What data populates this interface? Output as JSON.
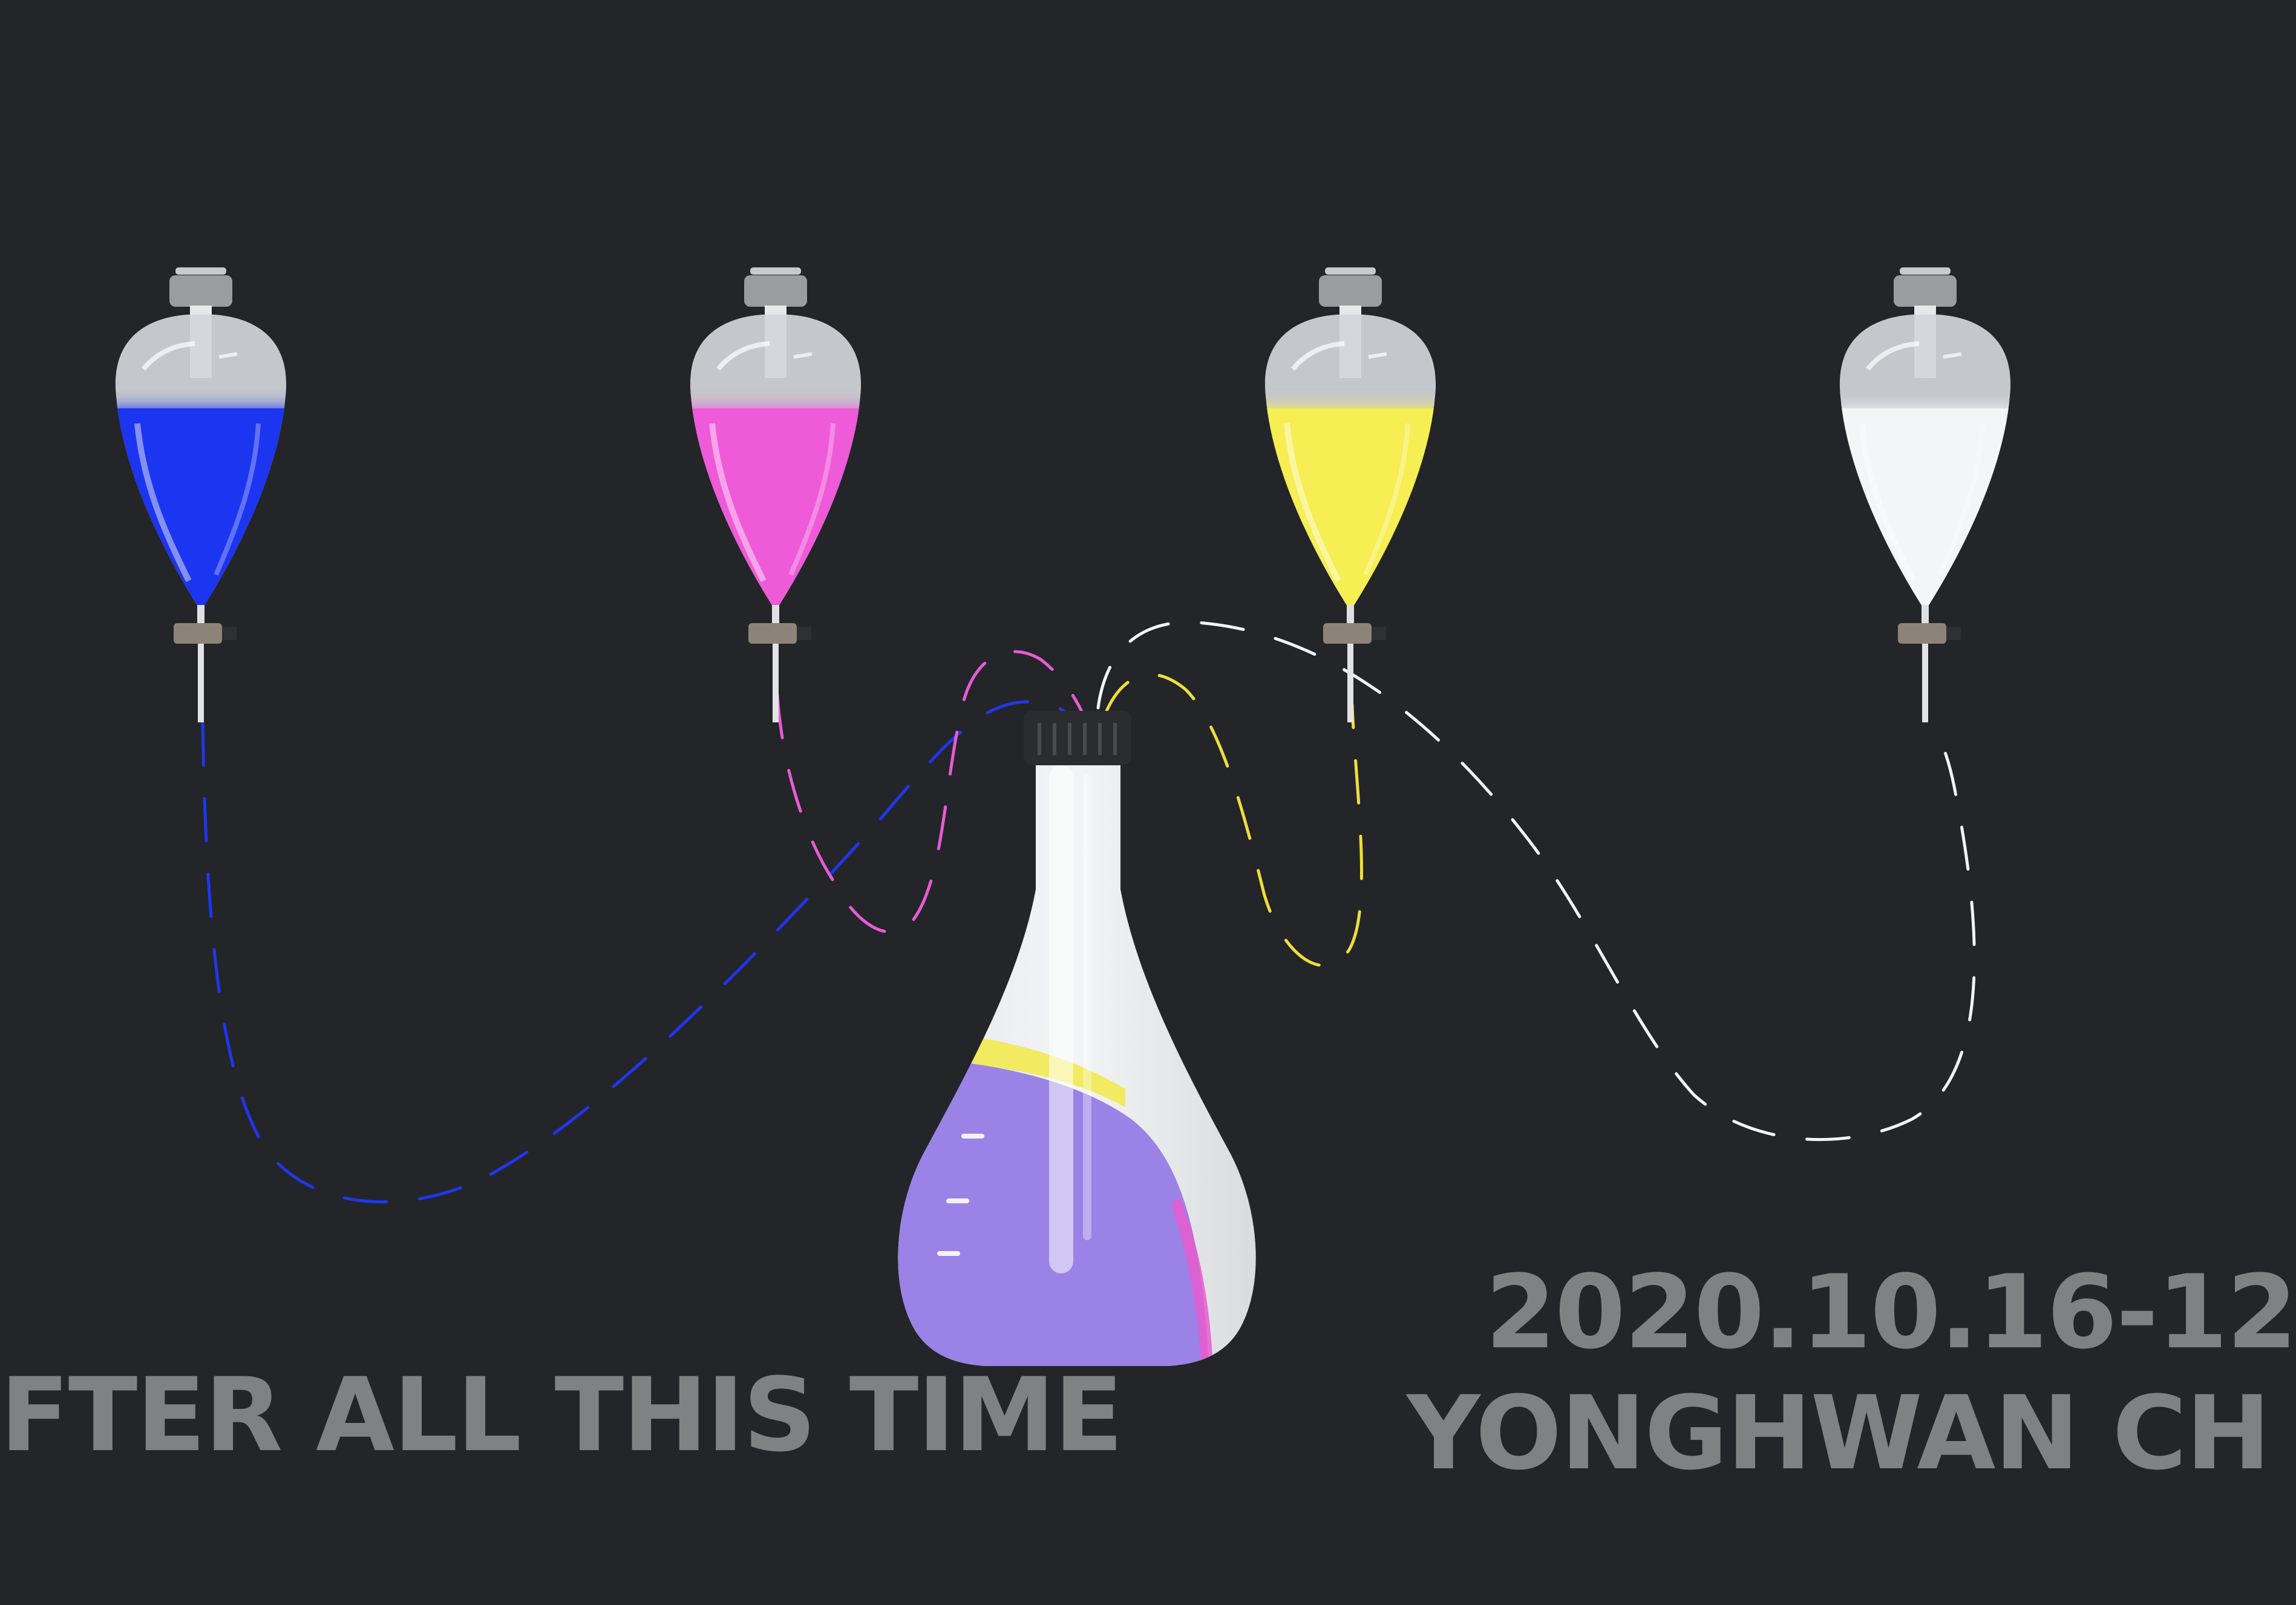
{
  "poster": {
    "title": "FTER ALL THIS TIME",
    "dates": "2020.10.16-12",
    "artist": "YONGHWAN CH"
  },
  "funnels": [
    {
      "name": "blue",
      "color": "#1f35f0",
      "fill_level": 0.65
    },
    {
      "name": "pink",
      "color": "#ee5ad8",
      "fill_level": 0.65
    },
    {
      "name": "yellow",
      "color": "#f6ee52",
      "fill_level": 0.65
    },
    {
      "name": "white",
      "color": "#f4f5f7",
      "fill_level": 0.65
    }
  ],
  "flask": {
    "liquid_color": "#9b82e6",
    "yellow_band": "#f2ea60",
    "pink_edge": "#e85ccf",
    "cap_color": "#2b2c2f"
  },
  "colors": {
    "background": "#242528",
    "text": "#808183",
    "glass": "#d8dadd"
  }
}
